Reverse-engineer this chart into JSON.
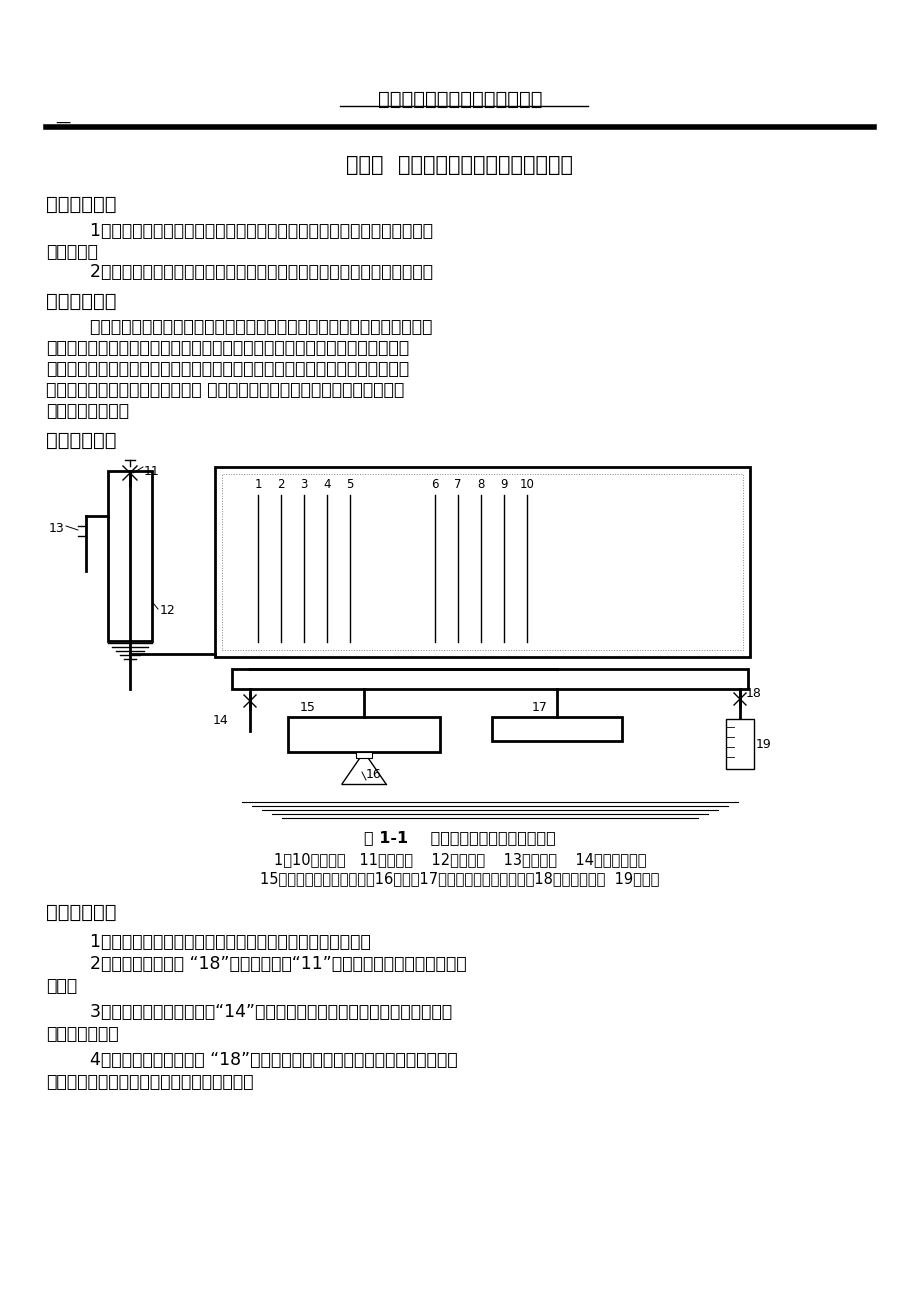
{
  "title": "中国石油大学渗流力学实验报告",
  "exp_title": "实验一  不可压缩流体单向稳定渗流实验",
  "section1_header": "一、实验目的",
  "section1_p1a": "        1、本实验采用的是变截面两段均质模型，通过实验观察不同段的不同压力",
  "section1_p1b": "降落情况。",
  "section1_p2": "        2、进一步加深对达西定律的深入理解，并了解它的适用范围及其局限性。",
  "section2_header": "二、实验原理",
  "section2_p1": "        一维单相渗流实验以稳定渗流理论为基础，采用变直径填砂管模型，以流体",
  "section2_p2": "在模型中的流动模拟水平均质地层中不可压缩流体单向稳定渗流过程。保持填砂",
  "section2_p3": "管两端恒定压力，改变出口端流量，在稳定条件下测量填砂管不同位置处的压力",
  "section2_p4": "值，可绘制压力随位置的变化曲线 根据一维单相稳定渗流方程的解并计算两段",
  "section2_p5": "填砂管的渗透率。",
  "section3_header": "三、实验流程",
  "fig_caption": "图 1-1    一维单相稳定渗流实验流程图",
  "fig_legend1": "1～10－测压管   11－供液阀    12－供液筒    13－溢流管    14－供液控制阀",
  "fig_legend2": "15－水平单向渗流管（粗）16－支枖17－水平单向渗流管（细）18－出口控制阀  19－量筒",
  "section4_header": "四、实验步骤",
  "step1": "        1、记录渗流管长度、渗流管直径、测压管间距等相关数据。",
  "step2a": "        2、关闭出口控制阀 “18”，打开供液阀“11”，打开管道泵电源，向供液筒",
  "step2b": "注水。",
  "step3a": "        3、打开并调节供液控制阀“14”，使各测压管液面与供液筒内的液面保持在",
  "step3b": "同一水平面上。",
  "step4a": "        4、稍微打开出口控制阀 “18”，待渗流稳定后，记录各测压管的液面高度，",
  "step4b": "用量筒、秒表测量渗流液体流量，重复三次。",
  "bg_color": "#ffffff",
  "text_color": "#000000"
}
